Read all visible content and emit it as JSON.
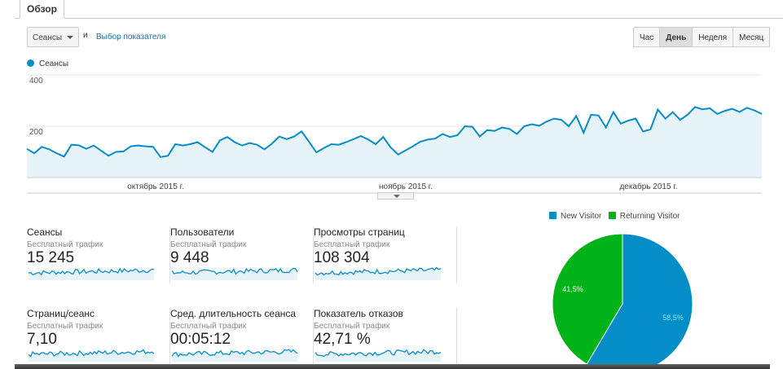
{
  "tab": "Обзор",
  "controls": {
    "metric_select": "Сеансы",
    "and_label": "и",
    "metric_link": "Выбор показателя",
    "periods": [
      "Час",
      "День",
      "Неделя",
      "Месяц"
    ],
    "active_period": "День"
  },
  "chart_data": [
    {
      "type": "line",
      "legend": "Сеансы",
      "color": "#058dc7",
      "yticks": [
        "400",
        "200"
      ],
      "ylim": [
        0,
        400
      ],
      "xtick_labels": [
        "октябрь 2015 г.",
        "ноябрь 2015 г.",
        "декабрь 2015 г."
      ],
      "values": [
        112,
        95,
        120,
        110,
        95,
        82,
        128,
        126,
        112,
        125,
        105,
        85,
        100,
        102,
        122,
        125,
        122,
        120,
        80,
        85,
        130,
        125,
        130,
        138,
        118,
        100,
        145,
        158,
        138,
        125,
        135,
        128,
        110,
        132,
        160,
        150,
        160,
        180,
        140,
        98,
        115,
        130,
        128,
        138,
        150,
        162,
        148,
        130,
        158,
        118,
        90,
        106,
        122,
        140,
        148,
        152,
        170,
        158,
        165,
        200,
        198,
        160,
        185,
        182,
        195,
        190,
        170,
        200,
        208,
        202,
        218,
        230,
        225,
        200,
        240,
        175,
        245,
        242,
        195,
        255,
        210,
        222,
        230,
        180,
        188,
        265,
        230,
        255,
        225,
        245,
        275,
        266,
        270,
        248,
        260,
        268,
        256,
        272,
        262,
        248
      ]
    },
    {
      "type": "pie",
      "legend": [
        "New Visitor",
        "Returning Visitor"
      ],
      "values": [
        58.5,
        41.5
      ],
      "labels": [
        "58,5%",
        "41,5%"
      ],
      "colors": [
        "#058dc7",
        "#00b318"
      ]
    }
  ],
  "metrics": [
    {
      "title": "Сеансы",
      "sub": "Бесплатный трафик",
      "value": "15 245"
    },
    {
      "title": "Пользователи",
      "sub": "Бесплатный трафик",
      "value": "9 448"
    },
    {
      "title": "Просмотры страниц",
      "sub": "Бесплатный трафик",
      "value": "108 304"
    },
    {
      "title": "Страниц/сеанс",
      "sub": "Бесплатный трафик",
      "value": "7,10"
    },
    {
      "title": "Сред. длительность сеанса",
      "sub": "Бесплатный трафик",
      "value": "00:05:12"
    },
    {
      "title": "Показатель отказов",
      "sub": "Бесплатный трафик",
      "value": "42,71 %"
    }
  ]
}
